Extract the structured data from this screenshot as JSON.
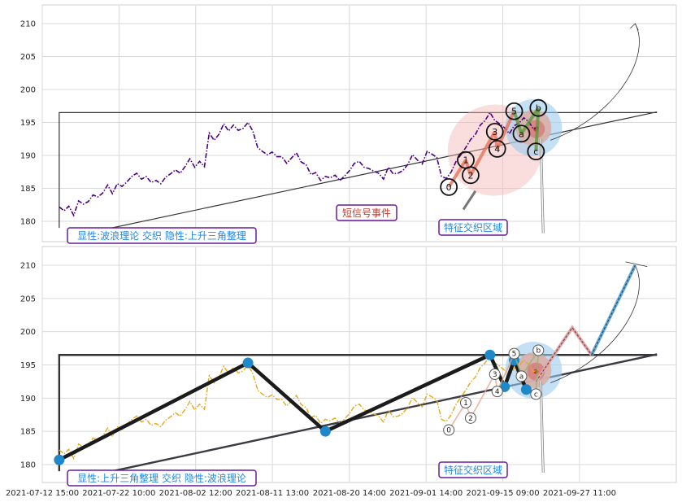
{
  "chart_data": [
    {
      "type": "line",
      "panel": "top",
      "ylim": [
        177,
        212.5
      ],
      "yticks": [
        180,
        185,
        190,
        195,
        200,
        205,
        210
      ],
      "grid": true,
      "series": [
        {
          "style": "dash-dot",
          "color": "#4b0082",
          "points": [
            [
              0,
              182.2
            ],
            [
              2,
              181.6
            ],
            [
              4,
              182.3
            ],
            [
              6,
              180.9
            ],
            [
              8,
              183.1
            ],
            [
              10,
              182.6
            ],
            [
              12,
              183.0
            ],
            [
              14,
              184.0
            ],
            [
              16,
              183.7
            ],
            [
              18,
              184.3
            ],
            [
              20,
              185.5
            ],
            [
              22,
              184.2
            ],
            [
              24,
              185.7
            ],
            [
              26,
              185.3
            ],
            [
              28,
              186.0
            ],
            [
              30,
              186.8
            ],
            [
              32,
              187.3
            ],
            [
              34,
              186.4
            ],
            [
              36,
              186.8
            ],
            [
              38,
              185.9
            ],
            [
              40,
              186.2
            ],
            [
              42,
              185.7
            ],
            [
              44,
              186.7
            ],
            [
              46,
              187.2
            ],
            [
              48,
              187.8
            ],
            [
              50,
              187.3
            ],
            [
              52,
              188.3
            ],
            [
              54,
              189.5
            ],
            [
              56,
              188.2
            ],
            [
              58,
              189.1
            ],
            [
              60,
              188.3
            ],
            [
              62,
              193.4
            ],
            [
              64,
              192.3
            ],
            [
              66,
              193.2
            ],
            [
              68,
              194.8
            ],
            [
              70,
              193.7
            ],
            [
              72,
              194.6
            ],
            [
              74,
              193.8
            ],
            [
              76,
              194.1
            ],
            [
              78,
              195.0
            ],
            [
              80,
              193.7
            ],
            [
              82,
              191.2
            ],
            [
              84,
              190.6
            ],
            [
              86,
              190.1
            ],
            [
              88,
              190.5
            ],
            [
              90,
              189.8
            ],
            [
              92,
              189.8
            ],
            [
              94,
              188.8
            ],
            [
              96,
              189.6
            ],
            [
              98,
              190.4
            ],
            [
              100,
              189.0
            ],
            [
              102,
              188.6
            ],
            [
              104,
              187.1
            ],
            [
              106,
              187.4
            ],
            [
              108,
              186.2
            ],
            [
              110,
              186.8
            ],
            [
              112,
              186.6
            ],
            [
              114,
              187.0
            ],
            [
              116,
              186.2
            ],
            [
              118,
              186.9
            ],
            [
              120,
              187.7
            ],
            [
              122,
              188.8
            ],
            [
              124,
              189.1
            ],
            [
              126,
              188.2
            ],
            [
              128,
              188.0
            ],
            [
              130,
              187.6
            ],
            [
              132,
              187.3
            ],
            [
              134,
              186.4
            ],
            [
              136,
              188.2
            ],
            [
              138,
              187.2
            ],
            [
              140,
              187.3
            ],
            [
              142,
              187.7
            ],
            [
              144,
              188.6
            ],
            [
              146,
              190.1
            ],
            [
              148,
              189.3
            ],
            [
              150,
              188.7
            ],
            [
              152,
              190.6
            ],
            [
              154,
              190.2
            ],
            [
              156,
              189.7
            ],
            [
              158,
              186.8
            ],
            [
              160,
              186.5
            ],
            [
              162,
              187.5
            ],
            [
              164,
              189.1
            ],
            [
              166,
              190.1
            ],
            [
              168,
              191.2
            ],
            [
              170,
              192.4
            ],
            [
              172,
              193.2
            ],
            [
              174,
              194.6
            ],
            [
              176,
              195.3
            ],
            [
              178,
              196.5
            ],
            [
              180,
              195.3
            ],
            [
              182,
              194.8
            ],
            [
              184,
              194.2
            ],
            [
              186,
              193.3
            ],
            [
              188,
              194.5
            ],
            [
              190,
              194.9
            ],
            [
              192,
              195.7
            ],
            [
              194,
              195.1
            ],
            [
              196,
              194.0
            ],
            [
              198,
              194.3
            ]
          ]
        }
      ],
      "wave_points": [
        {
          "label": "0",
          "x": 161,
          "y": 185.2
        },
        {
          "label": "1",
          "x": 168,
          "y": 189.3
        },
        {
          "label": "2",
          "x": 170,
          "y": 187.0
        },
        {
          "label": "3",
          "x": 180,
          "y": 193.6
        },
        {
          "label": "4",
          "x": 181,
          "y": 191.0
        },
        {
          "label": "5",
          "x": 188,
          "y": 196.7
        },
        {
          "label": "a",
          "x": 191,
          "y": 193.3
        },
        {
          "label": "b",
          "x": 198,
          "y": 197.2
        },
        {
          "label": "c",
          "x": 197,
          "y": 190.6
        }
      ],
      "annotations": [
        "短信号事件",
        "特征交织区域"
      ],
      "legend": "显性:波浪理论 交织 隐性:上升三角整理"
    },
    {
      "type": "line",
      "panel": "bottom",
      "ylim": [
        177,
        212.5
      ],
      "yticks": [
        180,
        185,
        190,
        195,
        200,
        205,
        210
      ],
      "grid": true,
      "xticks": [
        "2021-07-12 15:00",
        "2021-07-22 10:00",
        "2021-08-02 12:00",
        "2021-08-11 13:00",
        "2021-08-20 14:00",
        "2021-09-01 14:00",
        "2021-09-15 09:00",
        "2021-09-27 11:00"
      ],
      "series": [
        {
          "style": "dash-dot",
          "color": "#e6a817",
          "source": "same price series as top panel"
        }
      ],
      "triangle_pivots": [
        {
          "x": 0,
          "y": 180.7
        },
        {
          "x": 78,
          "y": 195.3
        },
        {
          "x": 110,
          "y": 185.0
        },
        {
          "x": 178,
          "y": 196.5
        },
        {
          "x": 184,
          "y": 191.7
        },
        {
          "x": 188,
          "y": 195.7
        },
        {
          "x": 193,
          "y": 191.3
        }
      ],
      "wave_points": [
        {
          "label": "0",
          "x": 161,
          "y": 185.2
        },
        {
          "label": "1",
          "x": 168,
          "y": 189.3
        },
        {
          "label": "2",
          "x": 170,
          "y": 187.0
        },
        {
          "label": "3",
          "x": 180,
          "y": 193.6
        },
        {
          "label": "4",
          "x": 181,
          "y": 191.0
        },
        {
          "label": "5",
          "x": 188,
          "y": 196.7
        },
        {
          "label": "a",
          "x": 191,
          "y": 193.3
        },
        {
          "label": "b",
          "x": 198,
          "y": 197.2
        },
        {
          "label": "c",
          "x": 197,
          "y": 190.6
        }
      ],
      "annotations": [
        "特征交织区域"
      ],
      "legend": "显性:上升三角整理 交织 隐性:波浪理论"
    }
  ]
}
